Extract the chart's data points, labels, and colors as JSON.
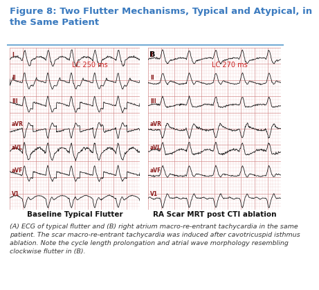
{
  "title": "Figure 8: Two Flutter Mechanisms, Typical and Atypical, in\nthe Same Patient",
  "title_fontsize": 9.5,
  "title_color": "#3a7abf",
  "title_bold": true,
  "bg_color": "#ffffff",
  "ecg_bg_color": "#f5d0d0",
  "grid_major_color": "#d08080",
  "grid_minor_color": "#e8b0b0",
  "leads": [
    "I",
    "II",
    "III",
    "aVR",
    "aVL",
    "aVF",
    "V1"
  ],
  "lc_left": "LC 250 ms",
  "lc_right": "LC 270 ms",
  "caption_left": "Baseline Typical Flutter",
  "caption_right": "RA Scar MRT post CTI ablation",
  "footer_text": "(A) ECG of typical flutter and (B) right atrium macro-re-entrant tachycardia in the same\npatient. The scar macro-re-entrant tachycardia was induced after cavotricuspid isthmus\nablation. Note the cycle length prolongation and atrial wave morphology resembling\nclockwise flutter in (B).",
  "footer_fontsize": 6.8,
  "lead_label_color": "#8b1a1a",
  "lc_color": "#cc2222",
  "ecg_line_color": "#111111",
  "caption_fontsize": 7.5,
  "caption_bold": true,
  "divider_color": "#5599cc",
  "label_B_color": "#000000"
}
